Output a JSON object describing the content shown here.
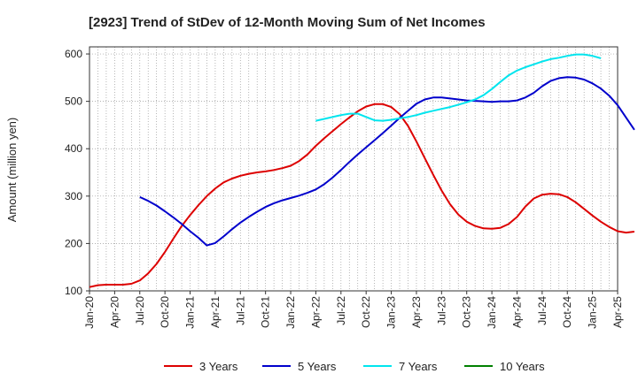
{
  "chart_data": {
    "type": "line",
    "title": "[2923]  Trend of StDev of 12-Month Moving Sum of Net Incomes",
    "ylabel": "Amount (million yen)",
    "xlabel": "",
    "ylim": [
      100,
      615
    ],
    "yticks": [
      100,
      200,
      300,
      400,
      500,
      600
    ],
    "xticks": [
      "Jan-20",
      "Apr-20",
      "Jul-20",
      "Oct-20",
      "Jan-21",
      "Apr-21",
      "Jul-21",
      "Oct-21",
      "Jan-22",
      "Apr-22",
      "Jul-22",
      "Oct-22",
      "Jan-23",
      "Apr-23",
      "Jul-23",
      "Oct-23",
      "Jan-24",
      "Apr-24",
      "Jul-24",
      "Oct-24",
      "Jan-25",
      "Apr-25"
    ],
    "grid": true,
    "legend_position": "bottom",
    "series": [
      {
        "name": "3 Years",
        "color": "#dd0000",
        "start_index": 0,
        "values": [
          108,
          112,
          113,
          113,
          113,
          115,
          122,
          137,
          157,
          182,
          210,
          237,
          260,
          281,
          300,
          316,
          329,
          337,
          343,
          347,
          350,
          352,
          355,
          359,
          364,
          374,
          388,
          406,
          422,
          437,
          452,
          466,
          479,
          489,
          494,
          494,
          488,
          473,
          448,
          415,
          380,
          345,
          312,
          283,
          261,
          246,
          237,
          232,
          231,
          233,
          241,
          256,
          278,
          295,
          303,
          305,
          304,
          298,
          287,
          273,
          259,
          246,
          235,
          226,
          223,
          225
        ]
      },
      {
        "name": "5 Years",
        "color": "#0000cc",
        "start_index": 6,
        "values": [
          298,
          290,
          280,
          268,
          255,
          241,
          226,
          212,
          196,
          201,
          215,
          230,
          244,
          256,
          267,
          277,
          285,
          291,
          296,
          301,
          307,
          314,
          325,
          339,
          355,
          372,
          388,
          403,
          418,
          433,
          449,
          465,
          480,
          495,
          504,
          508,
          508,
          506,
          504,
          502,
          501,
          500,
          499,
          500,
          500,
          502,
          508,
          518,
          532,
          543,
          549,
          551,
          550,
          546,
          538,
          527,
          512,
          492,
          466,
          440
        ]
      },
      {
        "name": "7 Years",
        "color": "#00e5ee",
        "start_index": 27,
        "values": [
          459,
          463,
          467,
          471,
          474,
          474,
          467,
          460,
          459,
          461,
          464,
          467,
          471,
          476,
          480,
          484,
          488,
          493,
          498,
          504,
          513,
          526,
          541,
          555,
          565,
          572,
          578,
          584,
          589,
          592,
          596,
          599,
          599,
          596,
          591
        ]
      },
      {
        "name": "10 Years",
        "color": "#008000",
        "start_index": 0,
        "values": []
      }
    ]
  }
}
